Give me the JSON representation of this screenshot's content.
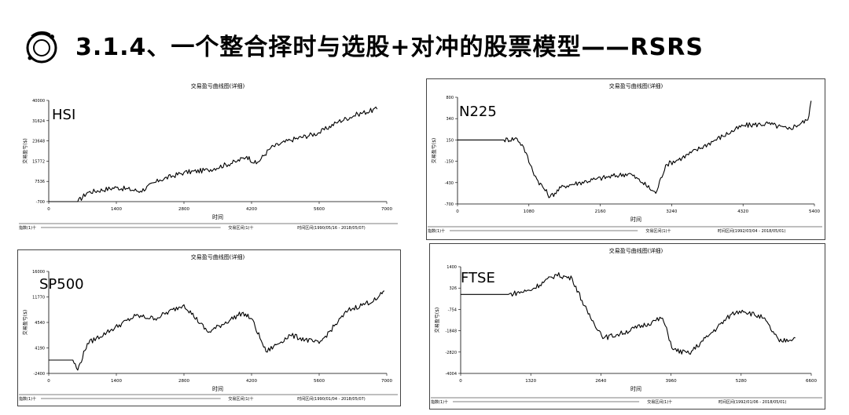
{
  "header": {
    "title": "3.1.4、一个整合择时与选股+对冲的股票模型——RSRS",
    "logo_icon": "ring-logo-icon"
  },
  "chart_data": [
    {
      "type": "line",
      "label": "HSI",
      "title": "交易盈亏曲线图(详细)",
      "xlabel": "时间",
      "ylabel": "交易盈亏($)",
      "xlim": [
        0,
        7000
      ],
      "ylim": [
        -700,
        40000
      ],
      "x_ticks": [
        "0",
        "1400",
        "2800",
        "4200",
        "5600",
        "7000"
      ],
      "y_ticks": [
        "-700",
        "7536",
        "15772",
        "23648",
        "31624",
        "40000"
      ],
      "footer": [
        "指数(1)十",
        "交易区间(1)十",
        "时间区间(1990/05/16 - 2018/05/07)"
      ],
      "x": [
        0,
        600,
        800,
        1400,
        1900,
        2300,
        2800,
        3300,
        3900,
        4100,
        4300,
        4600,
        5000,
        5600,
        6000,
        6400,
        6800
      ],
      "y": [
        -700,
        -700,
        3000,
        5000,
        3500,
        8000,
        11000,
        12000,
        15500,
        17500,
        14500,
        21000,
        24000,
        27000,
        31500,
        34500,
        36500
      ]
    },
    {
      "type": "line",
      "label": "N225",
      "title": "交易盈亏曲线图(详细)",
      "xlabel": "时间",
      "ylabel": "交易盈亏($)",
      "xlim": [
        0,
        5400
      ],
      "ylim": [
        -7000,
        8000
      ],
      "x_ticks": [
        "0",
        "1080",
        "2160",
        "3240",
        "4320",
        "5400"
      ],
      "y_ticks": [
        "-700",
        "-430",
        "-150",
        "150",
        "340",
        "800"
      ],
      "footer": [
        "指数(1)十",
        "交易区间(1)十",
        "时间区间(1992/03/04 - 2018/05/01)"
      ],
      "x": [
        0,
        700,
        900,
        1000,
        1100,
        1200,
        1400,
        1600,
        2100,
        2600,
        2800,
        3000,
        3150,
        3400,
        3900,
        4320,
        4700,
        5000,
        5300,
        5350
      ],
      "y": [
        2000,
        2000,
        2200,
        1000,
        -1500,
        -3500,
        -6000,
        -4500,
        -3500,
        -2700,
        -4000,
        -5500,
        -1500,
        -500,
        2000,
        4000,
        4300,
        3500,
        4800,
        7500
      ]
    },
    {
      "type": "line",
      "label": "SP500",
      "title": "交易盈亏曲线图(详细)",
      "xlabel": "时间",
      "ylabel": "交易盈亏($)",
      "xlim": [
        0,
        7000
      ],
      "ylim": [
        -2400,
        16000
      ],
      "x_ticks": [
        "0",
        "1400",
        "2800",
        "4200",
        "5600",
        "7000"
      ],
      "y_ticks": [
        "-2400",
        "4190",
        "4540",
        "11770",
        "16000"
      ],
      "footer": [
        "指数(1)十",
        "交易区间(1)十",
        "时间区间(1990/01/04 - 2018/05/07)"
      ],
      "x": [
        0,
        500,
        600,
        800,
        1200,
        1800,
        2200,
        2800,
        3300,
        4000,
        4200,
        4400,
        4500,
        5000,
        5600,
        6200,
        6800,
        6950
      ],
      "y": [
        0,
        0,
        -1800,
        3000,
        5000,
        8000,
        7500,
        10000,
        5000,
        8500,
        7500,
        3500,
        1500,
        4500,
        3000,
        9000,
        11000,
        12500
      ]
    },
    {
      "type": "line",
      "label": "FTSE",
      "title": "交易盈亏曲线图(详细)",
      "xlabel": "时间",
      "ylabel": "交易盈亏($)",
      "xlim": [
        0,
        6600
      ],
      "ylim": [
        -4000,
        1400
      ],
      "x_ticks": [
        "0",
        "1320",
        "2640",
        "3960",
        "5280",
        "6600"
      ],
      "y_ticks": [
        "-4004",
        "-2820",
        "-1848",
        "-754",
        "326",
        "1400"
      ],
      "footer": [
        "指数(1)十",
        "交易区间(1)十",
        "时间区间(1992/01/06 - 2018/05/01)"
      ],
      "x": [
        0,
        900,
        1300,
        1800,
        2100,
        2400,
        2700,
        3000,
        3600,
        3800,
        4000,
        4300,
        4700,
        5100,
        5300,
        5700,
        6000,
        6300
      ],
      "y": [
        0,
        0,
        200,
        1000,
        800,
        -1000,
        -2200,
        -2000,
        -1400,
        -1200,
        -2800,
        -3000,
        -2000,
        -1000,
        -800,
        -1200,
        -2400,
        -2200
      ]
    }
  ]
}
